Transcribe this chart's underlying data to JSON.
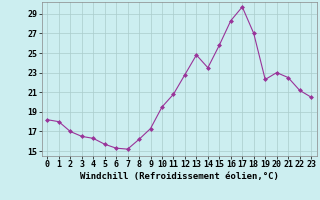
{
  "x": [
    0,
    1,
    2,
    3,
    4,
    5,
    6,
    7,
    8,
    9,
    10,
    11,
    12,
    13,
    14,
    15,
    16,
    17,
    18,
    19,
    20,
    21,
    22,
    23
  ],
  "y": [
    18.2,
    18.0,
    17.0,
    16.5,
    16.3,
    15.7,
    15.3,
    15.2,
    16.2,
    17.3,
    19.5,
    20.8,
    22.8,
    24.8,
    23.5,
    25.8,
    28.3,
    29.7,
    27.0,
    22.3,
    23.0,
    22.5,
    21.2,
    20.5
  ],
  "line_color": "#993399",
  "marker": "D",
  "marker_size": 2.5,
  "bg_color": "#cceef0",
  "grid_color": "#aacccc",
  "xlabel": "Windchill (Refroidissement éolien,°C)",
  "xlabel_fontsize": 6.5,
  "tick_fontsize": 6.0,
  "ylim": [
    14.5,
    30.2
  ],
  "yticks": [
    15,
    17,
    19,
    21,
    23,
    25,
    27,
    29
  ],
  "xticks": [
    0,
    1,
    2,
    3,
    4,
    5,
    6,
    7,
    8,
    9,
    10,
    11,
    12,
    13,
    14,
    15,
    16,
    17,
    18,
    19,
    20,
    21,
    22,
    23
  ]
}
